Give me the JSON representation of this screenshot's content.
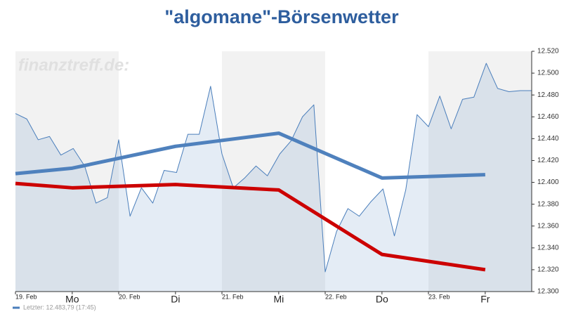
{
  "chart_data": {
    "type": "line",
    "title": "\"algomane\"-Börsenwetter",
    "watermark": "finanztreff.de:",
    "xlim": [
      0,
      5
    ],
    "xticks": [
      {
        "value": 0,
        "label": "19. Feb"
      },
      {
        "value": 0.55,
        "label": "Mo"
      },
      {
        "value": 1,
        "label": "20. Feb"
      },
      {
        "value": 1.55,
        "label": "Di"
      },
      {
        "value": 2,
        "label": "21. Feb"
      },
      {
        "value": 2.55,
        "label": "Mi"
      },
      {
        "value": 3,
        "label": "22. Feb"
      },
      {
        "value": 3.55,
        "label": "Do"
      },
      {
        "value": 4,
        "label": "23. Feb"
      },
      {
        "value": 4.55,
        "label": "Fr"
      }
    ],
    "ylim": [
      12.3,
      12.52
    ],
    "yticks": [
      {
        "value": 12.3,
        "label": "12.300"
      },
      {
        "value": 12.32,
        "label": "12.320"
      },
      {
        "value": 12.34,
        "label": "12.340"
      },
      {
        "value": 12.36,
        "label": "12.360"
      },
      {
        "value": 12.38,
        "label": "12.380"
      },
      {
        "value": 12.4,
        "label": "12.400"
      },
      {
        "value": 12.42,
        "label": "12.420"
      },
      {
        "value": 12.44,
        "label": "12.440"
      },
      {
        "value": 12.46,
        "label": "12.460"
      },
      {
        "value": 12.48,
        "label": "12.480"
      },
      {
        "value": 12.5,
        "label": "12.500"
      },
      {
        "value": 12.52,
        "label": "12.520"
      }
    ],
    "series": [
      {
        "name": "Letzter: 12.483,79 (17:45)",
        "color": "#4a7ebb",
        "area": true,
        "width": 1,
        "x": [
          0,
          0.11,
          0.22,
          0.33,
          0.44,
          0.56,
          0.67,
          0.78,
          0.89,
          1,
          1.11,
          1.22,
          1.33,
          1.44,
          1.56,
          1.67,
          1.78,
          1.89,
          2,
          2.11,
          2.22,
          2.33,
          2.44,
          2.56,
          2.67,
          2.78,
          2.89,
          3,
          3.11,
          3.22,
          3.33,
          3.44,
          3.56,
          3.67,
          3.78,
          3.89,
          4,
          4.11,
          4.22,
          4.33,
          4.44,
          4.56,
          4.67,
          4.78,
          4.89,
          5
        ],
        "values": [
          12.463,
          12.458,
          12.439,
          12.442,
          12.425,
          12.431,
          12.415,
          12.381,
          12.386,
          12.439,
          12.369,
          12.395,
          12.381,
          12.411,
          12.409,
          12.444,
          12.444,
          12.488,
          12.426,
          12.395,
          12.404,
          12.415,
          12.406,
          12.426,
          12.438,
          12.46,
          12.471,
          12.318,
          12.355,
          12.376,
          12.369,
          12.382,
          12.394,
          12.351,
          12.393,
          12.462,
          12.451,
          12.479,
          12.449,
          12.476,
          12.478,
          12.509,
          12.486,
          12.483,
          12.484,
          12.484
        ]
      },
      {
        "color": "#4f81bd",
        "area": false,
        "width": 5,
        "x": [
          0,
          0.55,
          1.55,
          2.55,
          3.55,
          4.55
        ],
        "values": [
          12.408,
          12.413,
          12.433,
          12.445,
          12.404,
          12.407
        ]
      },
      {
        "color": "#cc0000",
        "area": false,
        "width": 5,
        "x": [
          0,
          0.55,
          1.55,
          2.55,
          3.55,
          4.55
        ],
        "values": [
          12.399,
          12.395,
          12.398,
          12.393,
          12.334,
          12.32
        ]
      }
    ]
  }
}
